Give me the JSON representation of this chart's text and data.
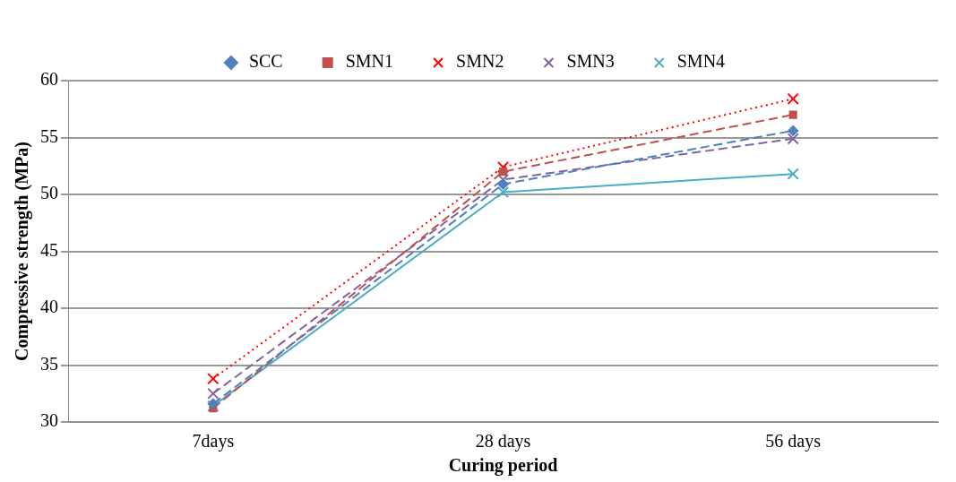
{
  "chart_data": {
    "type": "line",
    "xlabel": "Curing period",
    "ylabel": "Compressive strength (MPa)",
    "categories": [
      "7days",
      "28 days",
      "56 days"
    ],
    "series": [
      {
        "name": "SCC",
        "color": "#4f81bd",
        "values": [
          31.6,
          50.9,
          55.6
        ],
        "marker": "diamond",
        "line_style": "dashed"
      },
      {
        "name": "SMN1",
        "color": "#c0504d",
        "values": [
          31.2,
          52.0,
          57.0
        ],
        "marker": "square",
        "line_style": "dashed"
      },
      {
        "name": "SMN2",
        "color": "#ff0000",
        "values": [
          33.8,
          52.4,
          58.4
        ],
        "marker": "cross",
        "line_style": "dotted"
      },
      {
        "name": "SMN3",
        "color": "#8064a2",
        "values": [
          32.5,
          51.3,
          54.9
        ],
        "marker": "cross",
        "line_style": "dashed"
      },
      {
        "name": "SMN4",
        "color": "#4bacc6",
        "values": [
          31.4,
          50.2,
          51.8
        ],
        "marker": "cross",
        "line_style": "solid"
      }
    ],
    "ylim": [
      30,
      60
    ],
    "yticks": [
      30,
      35,
      40,
      45,
      50,
      55,
      60
    ],
    "grid": "y",
    "legend": "top"
  }
}
